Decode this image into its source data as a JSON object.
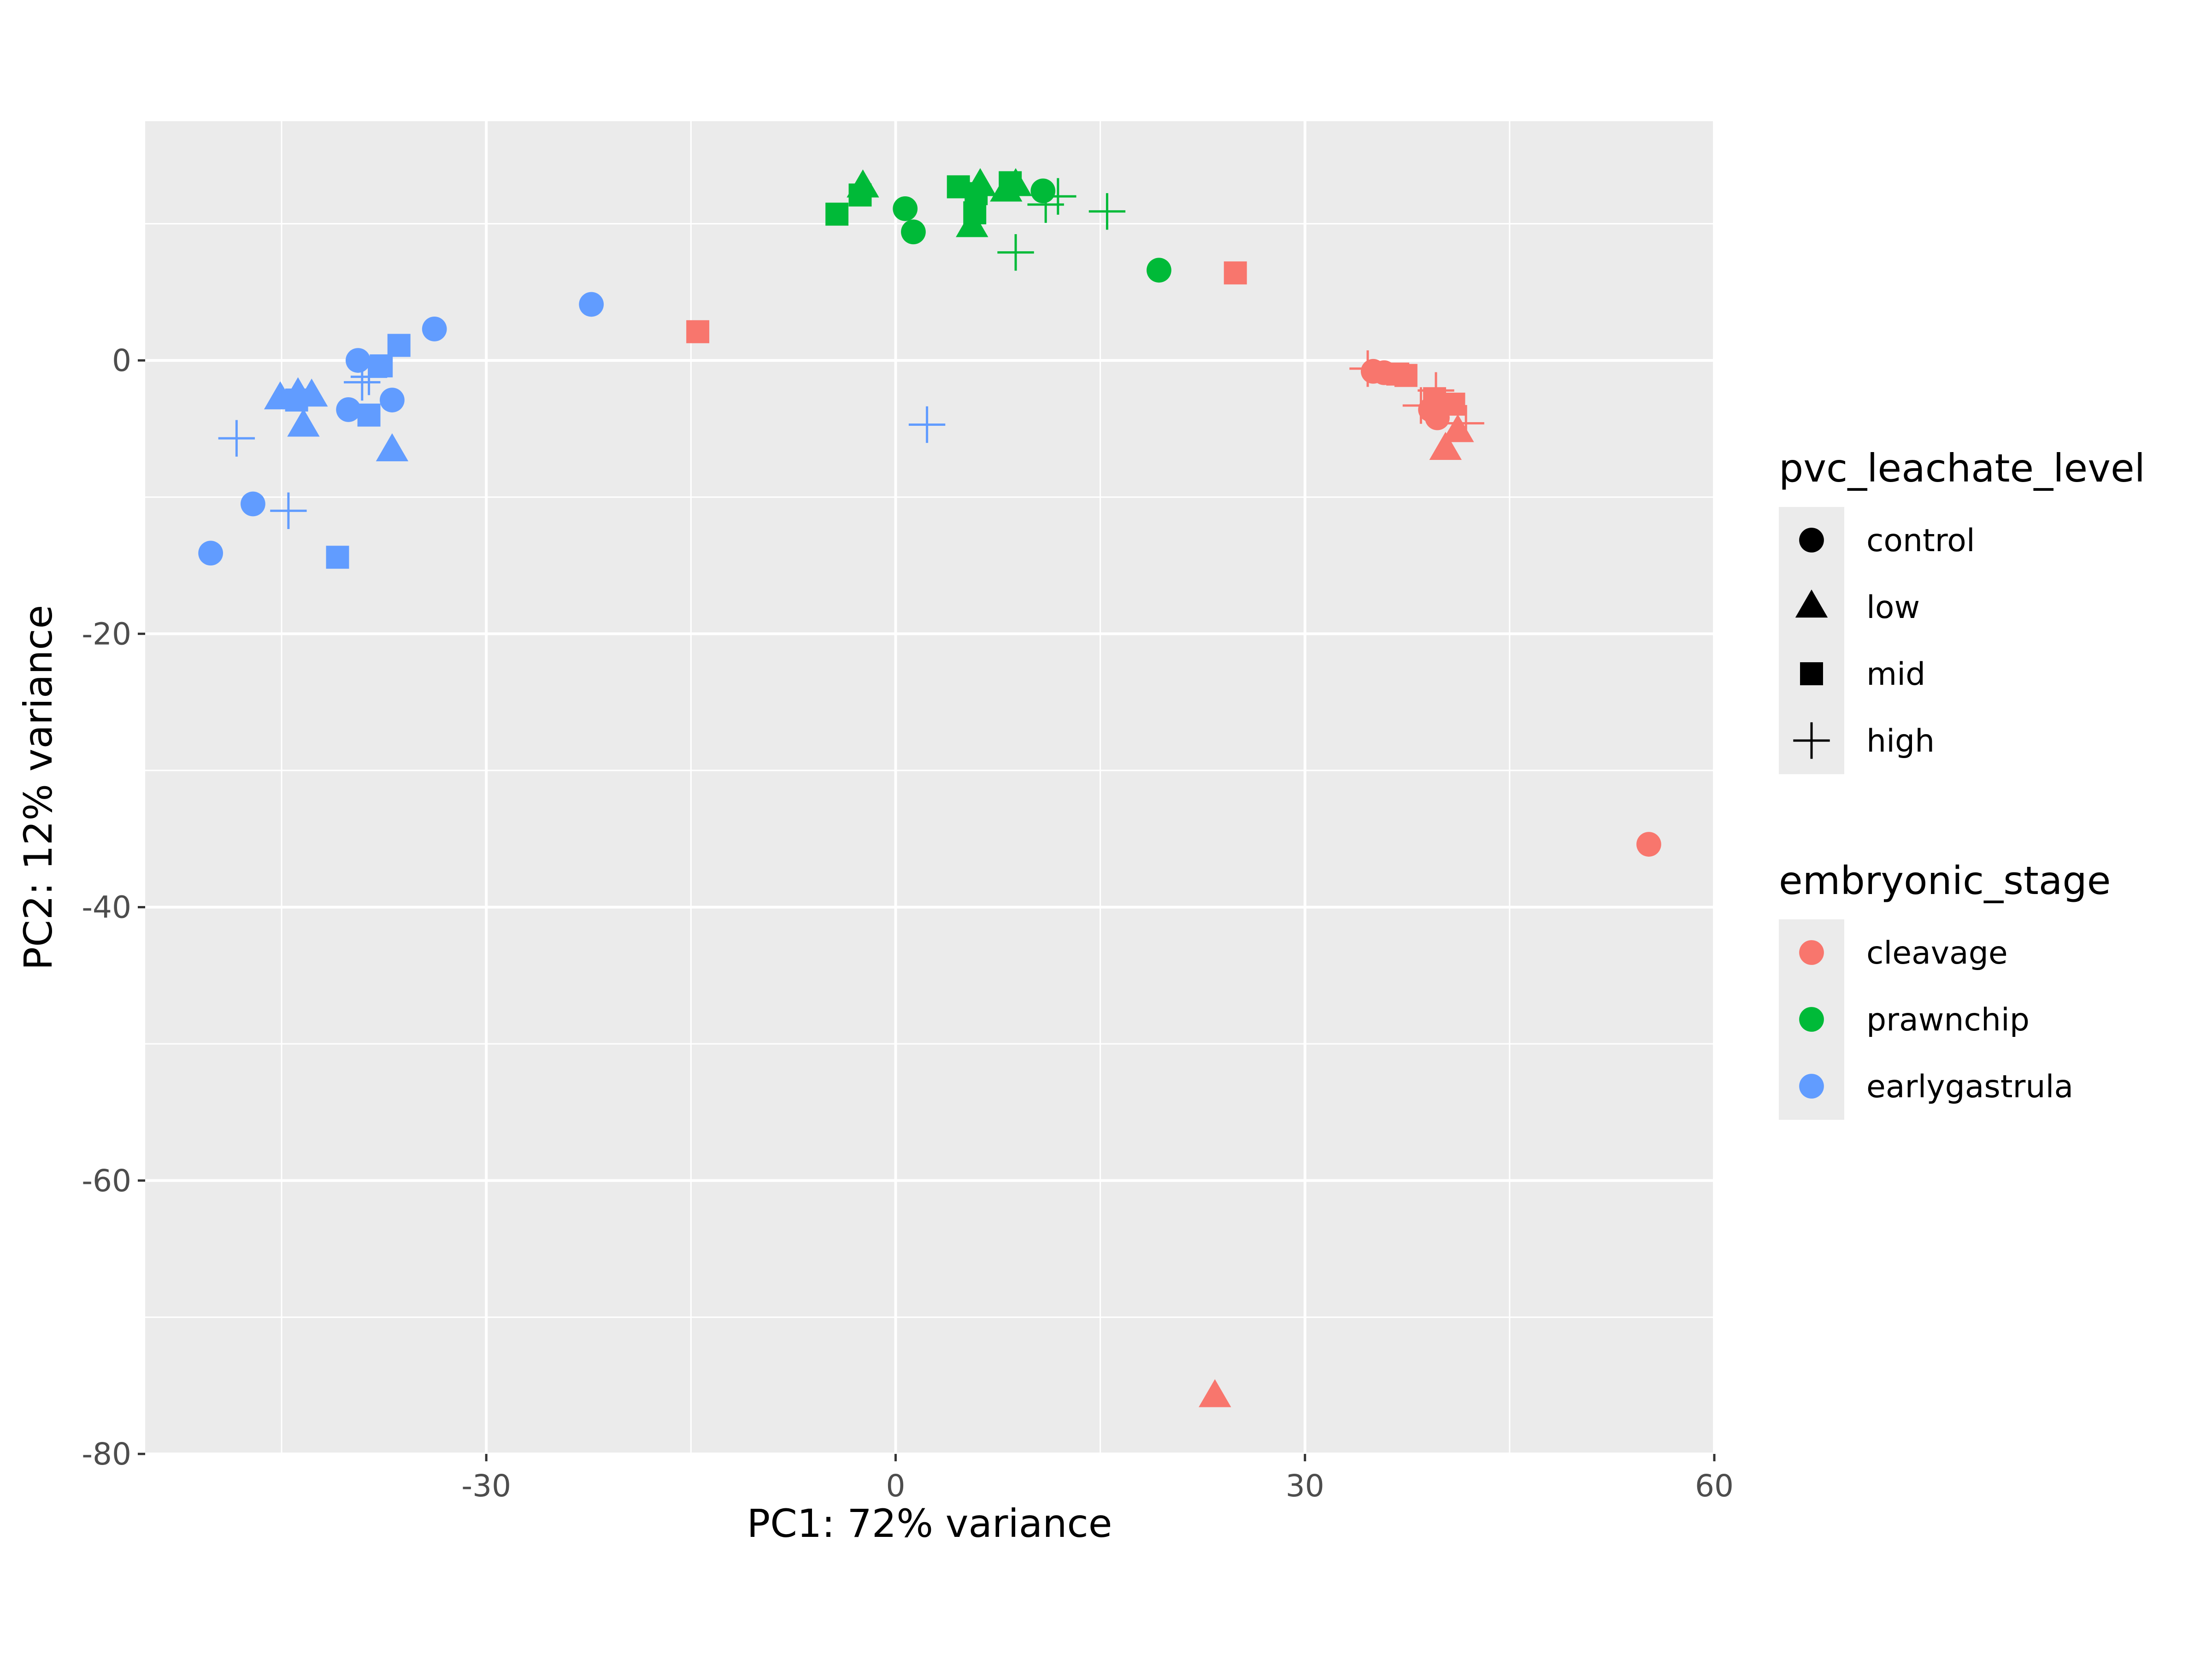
{
  "chart_data": {
    "type": "scatter",
    "xlabel": "PC1: 72% variance",
    "ylabel": "PC2: 12% variance",
    "xlim": [
      -55,
      60
    ],
    "ylim": [
      -80,
      17.5
    ],
    "x_ticks": [
      -30,
      0,
      30,
      60
    ],
    "y_ticks": [
      0,
      -20,
      -40,
      -60,
      -80
    ],
    "x_tick_labels": [
      "-30",
      "0",
      "30",
      "60"
    ],
    "y_tick_labels": [
      "0",
      "-20",
      "-40",
      "-60",
      "-80"
    ],
    "grid": true,
    "panel_color": "#ebebeb",
    "legend_position": "right",
    "shape_legend": {
      "title": "pvc_leachate_level",
      "items": [
        {
          "label": "control",
          "shape": "circle"
        },
        {
          "label": "low",
          "shape": "triangle"
        },
        {
          "label": "mid",
          "shape": "square"
        },
        {
          "label": "high",
          "shape": "plus"
        }
      ]
    },
    "color_legend": {
      "title": "embryonic_stage",
      "items": [
        {
          "label": "cleavage",
          "color": "#F8766D"
        },
        {
          "label": "prawnchip",
          "color": "#00BA38"
        },
        {
          "label": "earlygastrula",
          "color": "#619CFF"
        }
      ]
    },
    "series": [
      {
        "name": "cleavage",
        "color": "#F8766D",
        "points": [
          {
            "x": 35,
            "y": -0.8,
            "shape": "circle"
          },
          {
            "x": 35.8,
            "y": -0.9,
            "shape": "circle"
          },
          {
            "x": 39.2,
            "y": -3.6,
            "shape": "circle"
          },
          {
            "x": 39.7,
            "y": -4.2,
            "shape": "circle"
          },
          {
            "x": 55.2,
            "y": -35.4,
            "shape": "circle"
          },
          {
            "x": 40.3,
            "y": -6.5,
            "shape": "triangle"
          },
          {
            "x": 41.2,
            "y": -5.2,
            "shape": "triangle"
          },
          {
            "x": 23.4,
            "y": -75.8,
            "shape": "triangle"
          },
          {
            "x": -14.5,
            "y": 2.1,
            "shape": "square"
          },
          {
            "x": 24.9,
            "y": 6.4,
            "shape": "square"
          },
          {
            "x": 36.8,
            "y": -1.0,
            "shape": "square"
          },
          {
            "x": 37.4,
            "y": -1.1,
            "shape": "square"
          },
          {
            "x": 39.5,
            "y": -2.8,
            "shape": "square"
          },
          {
            "x": 40.9,
            "y": -3.2,
            "shape": "square"
          },
          {
            "x": 34.6,
            "y": -0.6,
            "shape": "plus"
          },
          {
            "x": 38.5,
            "y": -3.3,
            "shape": "plus"
          },
          {
            "x": 39.6,
            "y": -2.2,
            "shape": "plus"
          },
          {
            "x": 41.8,
            "y": -4.6,
            "shape": "plus"
          }
        ]
      },
      {
        "name": "prawnchip",
        "color": "#00BA38",
        "points": [
          {
            "x": 0.7,
            "y": 11.1,
            "shape": "circle"
          },
          {
            "x": 1.3,
            "y": 9.4,
            "shape": "circle"
          },
          {
            "x": 10.8,
            "y": 12.4,
            "shape": "circle"
          },
          {
            "x": 19.3,
            "y": 6.6,
            "shape": "circle"
          },
          {
            "x": -2.4,
            "y": 12.7,
            "shape": "triangle"
          },
          {
            "x": 5.6,
            "y": 9.8,
            "shape": "triangle"
          },
          {
            "x": 6.2,
            "y": 12.8,
            "shape": "triangle"
          },
          {
            "x": 8.1,
            "y": 12.4,
            "shape": "triangle"
          },
          {
            "x": 8.8,
            "y": 12.8,
            "shape": "triangle"
          },
          {
            "x": -4.3,
            "y": 10.7,
            "shape": "square"
          },
          {
            "x": -2.6,
            "y": 12.1,
            "shape": "square"
          },
          {
            "x": 4.6,
            "y": 12.7,
            "shape": "square"
          },
          {
            "x": 5.8,
            "y": 10.8,
            "shape": "square"
          },
          {
            "x": 5.9,
            "y": 12.2,
            "shape": "square"
          },
          {
            "x": 8.4,
            "y": 13.0,
            "shape": "square"
          },
          {
            "x": 8.8,
            "y": 7.9,
            "shape": "plus"
          },
          {
            "x": 11.0,
            "y": 11.4,
            "shape": "plus"
          },
          {
            "x": 11.9,
            "y": 12.0,
            "shape": "plus"
          },
          {
            "x": 15.5,
            "y": 10.9,
            "shape": "plus"
          }
        ]
      },
      {
        "name": "earlygastrula",
        "color": "#619CFF",
        "points": [
          {
            "x": -50.2,
            "y": -14.1,
            "shape": "circle"
          },
          {
            "x": -47.1,
            "y": -10.5,
            "shape": "circle"
          },
          {
            "x": -40.1,
            "y": -3.6,
            "shape": "circle"
          },
          {
            "x": -39.4,
            "y": 0,
            "shape": "circle"
          },
          {
            "x": -36.9,
            "y": -2.9,
            "shape": "circle"
          },
          {
            "x": -33.8,
            "y": 2.3,
            "shape": "circle"
          },
          {
            "x": -22.3,
            "y": 4.1,
            "shape": "circle"
          },
          {
            "x": -45.1,
            "y": -2.8,
            "shape": "triangle"
          },
          {
            "x": -43.8,
            "y": -2.5,
            "shape": "triangle"
          },
          {
            "x": -42.8,
            "y": -2.6,
            "shape": "triangle"
          },
          {
            "x": -43.4,
            "y": -4.8,
            "shape": "triangle"
          },
          {
            "x": -36.9,
            "y": -6.6,
            "shape": "triangle"
          },
          {
            "x": -43.9,
            "y": -2.9,
            "shape": "square"
          },
          {
            "x": -40.9,
            "y": -14.4,
            "shape": "square"
          },
          {
            "x": -38.6,
            "y": -4.0,
            "shape": "square"
          },
          {
            "x": -37.7,
            "y": -0.4,
            "shape": "square"
          },
          {
            "x": -36.4,
            "y": 1.1,
            "shape": "square"
          },
          {
            "x": -48.3,
            "y": -5.7,
            "shape": "plus"
          },
          {
            "x": -44.5,
            "y": -11.0,
            "shape": "plus"
          },
          {
            "x": -39.1,
            "y": -1.6,
            "shape": "plus"
          },
          {
            "x": -38.6,
            "y": -1.2,
            "shape": "plus"
          },
          {
            "x": 2.3,
            "y": -4.7,
            "shape": "plus"
          }
        ]
      }
    ]
  }
}
